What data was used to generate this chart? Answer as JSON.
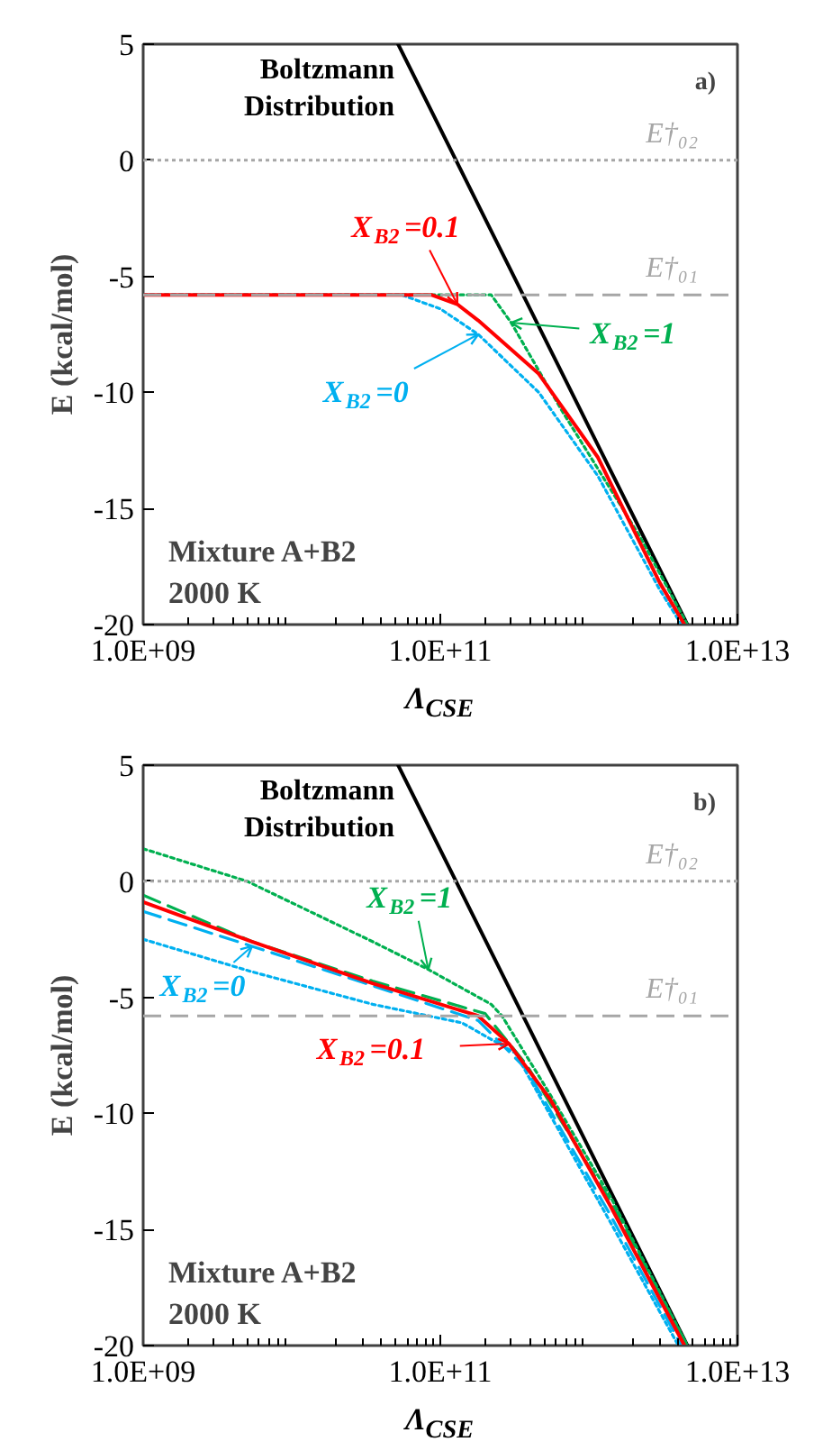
{
  "chart_data": [
    {
      "type": "line",
      "title": "a)",
      "xlabel": "Λ$_{CSE}$",
      "ylabel": "E (kcal/mol)",
      "log": "x",
      "grid": false,
      "xlim": [
        1000000000.0,
        10000000000000.0
      ],
      "ylim": [
        -20,
        5
      ],
      "xticks": [
        {
          "value": 1000000000.0,
          "label": "1.0E+09"
        },
        {
          "value": 100000000000.0,
          "label": "1.0E+11"
        },
        {
          "value": 10000000000000.0,
          "label": "1.0E+13"
        }
      ],
      "yticks": [
        5,
        0,
        -5,
        -10,
        -15,
        -20
      ],
      "series": [
        {
          "name": "Boltzmann\nDistribution",
          "color": "#000000",
          "line_style": "solid",
          "x": [
            52000000000.0,
            4600000000000.0
          ],
          "values": [
            5,
            -20
          ]
        },
        {
          "color": "#00b050",
          "line_style": "dotted",
          "x": [
            1000000000.0,
            220000000000.0,
            300000000000.0,
            660000000000.0,
            2200000000000.0,
            4600000000000.0
          ],
          "values": [
            -5.8,
            -5.8,
            -7.0,
            -10.8,
            -16.2,
            -20
          ]
        },
        {
          "color": "#00b0f0",
          "line_style": "dotted",
          "x": [
            1000000000.0,
            55000000000.0,
            100000000000.0,
            180000000000.0,
            460000000000.0,
            1150000000000.0,
            3000000000000.0,
            4200000000000.0
          ],
          "values": [
            -5.8,
            -5.8,
            -6.4,
            -7.5,
            -10.0,
            -13.6,
            -18.5,
            -20
          ]
        },
        {
          "color": "#ff0000",
          "line_style": "solid",
          "x": [
            1000000000.0,
            87000000000.0,
            130000000000.0,
            180000000000.0,
            460000000000.0,
            1150000000000.0,
            3000000000000.0,
            4400000000000.0
          ],
          "values": [
            -5.8,
            -5.8,
            -6.2,
            -6.9,
            -9.2,
            -12.8,
            -18.2,
            -20
          ]
        }
      ],
      "ref_lines": [
        {
          "axis": "y",
          "value": 0,
          "label": "E†₀₂",
          "color": "#a6a6a6",
          "line_style": "dotted"
        },
        {
          "axis": "y",
          "value": -5.8,
          "label": "E†₀₁",
          "color": "#a6a6a6",
          "line_style": "dashed"
        }
      ],
      "annotations": [
        {
          "text": "X$_{B2}$=0.1",
          "x": 130000000000.0,
          "y": -6.2
        },
        {
          "text": "X$_{B2}$=1",
          "x": 300000000000.0,
          "y": -7.0
        },
        {
          "text": "X$_{B2}$=0",
          "x": 180000000000.0,
          "y": -7.5
        },
        "Mixture A+B2\n2000 K"
      ]
    },
    {
      "type": "line",
      "title": "b)",
      "xlabel": "Λ$_{CSE}$",
      "ylabel": "E (kcal/mol)",
      "log": "x",
      "grid": false,
      "xlim": [
        1000000000.0,
        10000000000000.0
      ],
      "ylim": [
        -20,
        5
      ],
      "xticks": [
        {
          "value": 1000000000.0,
          "label": "1.0E+09"
        },
        {
          "value": 100000000000.0,
          "label": "1.0E+11"
        },
        {
          "value": 10000000000000.0,
          "label": "1.0E+13"
        }
      ],
      "yticks": [
        5,
        0,
        -5,
        -10,
        -15,
        -20
      ],
      "series": [
        {
          "name": "Boltzmann\nDistribution",
          "color": "#000000",
          "line_style": "solid",
          "x": [
            52000000000.0,
            4600000000000.0
          ],
          "values": [
            5,
            -20
          ]
        },
        {
          "color": "#00b050",
          "line_style": "dotted",
          "x": [
            1000000000.0,
            5000000000.0,
            35000000000.0,
            83000000000.0,
            220000000000.0,
            260000000000.0,
            550000000000.0,
            1400000000000.0,
            4600000000000.0
          ],
          "values": [
            1.4,
            0,
            -2.6,
            -3.8,
            -5.3,
            -5.8,
            -9.2,
            -13.6,
            -20
          ]
        },
        {
          "color": "#00b050",
          "line_style": "dashed",
          "x": [
            1000000000.0,
            5400000000.0,
            35000000000.0,
            200000000000.0,
            380000000000.0,
            1400000000000.0,
            4600000000000.0
          ],
          "values": [
            -0.6,
            -2.6,
            -4.3,
            -5.7,
            -7.9,
            -13.8,
            -20
          ]
        },
        {
          "color": "#00b0f0",
          "line_style": "dotted",
          "x": [
            1000000000.0,
            5400000000.0,
            35000000000.0,
            140000000000.0,
            320000000000.0,
            1400000000000.0,
            4000000000000.0
          ],
          "values": [
            -2.5,
            -3.9,
            -5.3,
            -6.1,
            -7.4,
            -14.7,
            -20
          ]
        },
        {
          "color": "#00b0f0",
          "line_style": "dashed",
          "x": [
            1000000000.0,
            5400000000.0,
            35000000000.0,
            180000000000.0,
            380000000000.0,
            1400000000000.0,
            4200000000000.0
          ],
          "values": [
            -1.3,
            -2.8,
            -4.5,
            -6.0,
            -8.1,
            -14.4,
            -20
          ]
        },
        {
          "color": "#ff0000",
          "line_style": "solid",
          "x": [
            1000000000.0,
            5400000000.0,
            35000000000.0,
            180000000000.0,
            290000000000.0,
            550000000000.0,
            1400000000000.0,
            4400000000000.0
          ],
          "values": [
            -0.9,
            -2.6,
            -4.4,
            -5.8,
            -7.0,
            -9.4,
            -14.0,
            -20
          ]
        }
      ],
      "ref_lines": [
        {
          "axis": "y",
          "value": 0,
          "label": "E†₀₂",
          "color": "#a6a6a6",
          "line_style": "dotted"
        },
        {
          "axis": "y",
          "value": -5.8,
          "label": "E†₀₁",
          "color": "#a6a6a6",
          "line_style": "dashed"
        }
      ],
      "annotations": [
        {
          "text": "X$_{B2}$=1",
          "x": 83000000000.0,
          "y": -3.8
        },
        {
          "text": "X$_{B2}$=0",
          "x": 5400000000.0,
          "y": -2.8
        },
        {
          "text": "X$_{B2}$=0.1",
          "x": 290000000000.0,
          "y": -7.0
        },
        "Mixture A+B2\n2000 K"
      ]
    }
  ]
}
